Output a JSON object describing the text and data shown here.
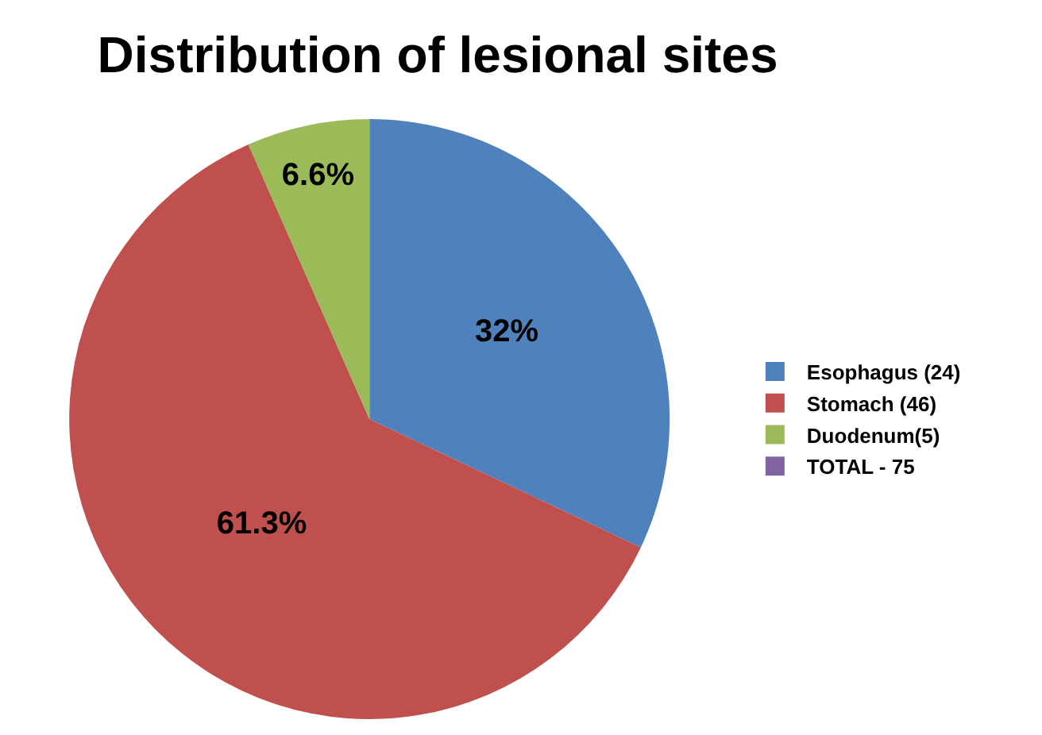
{
  "chart_data": {
    "type": "pie",
    "title": "Distribution of lesional sites",
    "categories": [
      "Esophagus (24)",
      "Stomach (46)",
      "Duodenum(5)",
      "TOTAL - 75"
    ],
    "values": [
      32,
      61.3,
      6.6,
      0
    ],
    "colors": [
      "#4f81bd",
      "#c0504d",
      "#9bbb59",
      "#8064a2"
    ],
    "value_labels": [
      "32%",
      "61.3%",
      "6.6%",
      null
    ],
    "legend": "right"
  }
}
